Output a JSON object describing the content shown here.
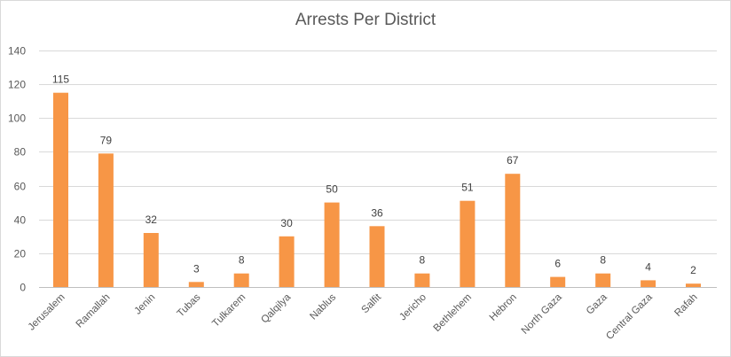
{
  "chart_data": {
    "type": "bar",
    "title": "Arrests Per District",
    "xlabel": "",
    "ylabel": "",
    "ylim": [
      0,
      140
    ],
    "yticks": [
      0,
      20,
      40,
      60,
      80,
      100,
      120,
      140
    ],
    "grid": true,
    "legend": "none",
    "bar_color": "#F79646",
    "categories": [
      "Jerusalem",
      "Ramallah",
      "Jenin",
      "Tubas",
      "Tulkarem",
      "Qalqilya",
      "Nablus",
      "Salfit",
      "Jericho",
      "Bethlehem",
      "Hebron",
      "North Gaza",
      "Gaza",
      "Central Gaza",
      "Rafah"
    ],
    "values": [
      115,
      79,
      32,
      3,
      8,
      30,
      50,
      36,
      8,
      51,
      67,
      6,
      8,
      4,
      2
    ]
  }
}
